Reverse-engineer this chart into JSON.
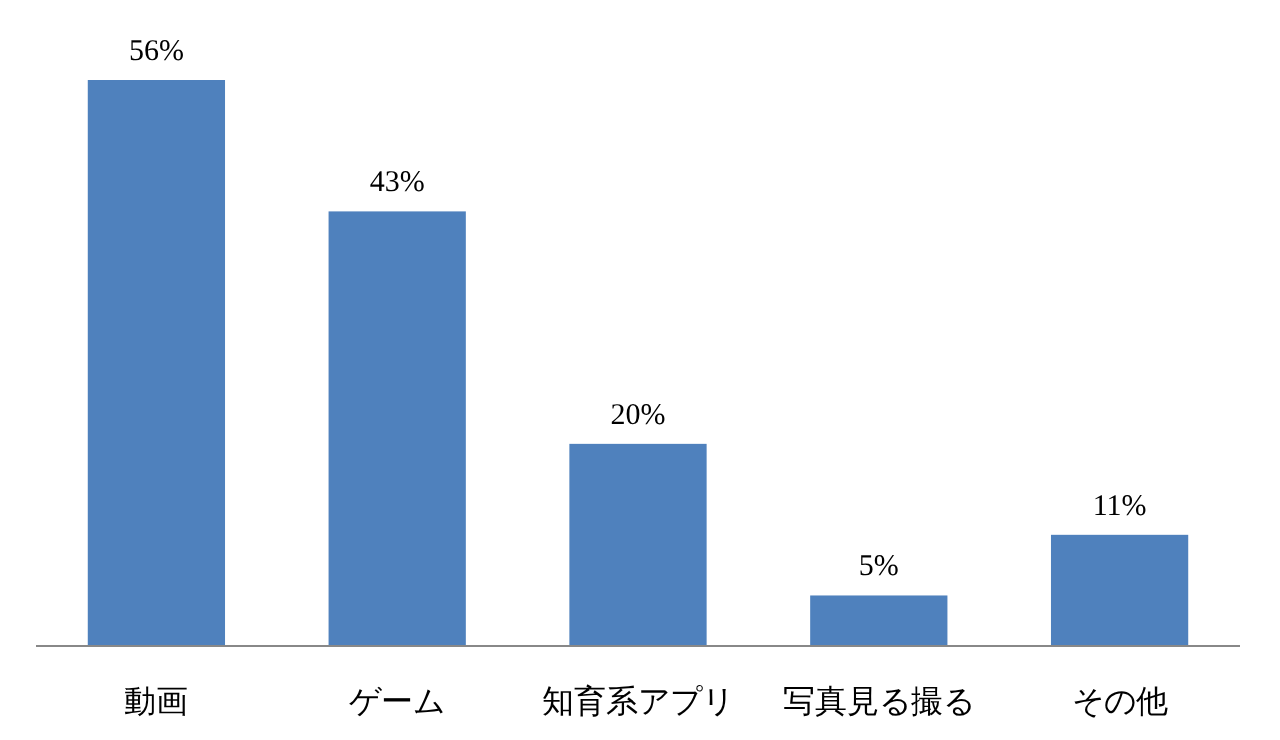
{
  "chart_data": {
    "type": "bar",
    "categories": [
      "動画",
      "ゲーム",
      "知育系アプリ",
      "写真見る撮る",
      "その他"
    ],
    "values": [
      56,
      43,
      20,
      5,
      11
    ],
    "value_labels": [
      "56%",
      "43%",
      "20%",
      "5%",
      "11%"
    ],
    "color": "#4f81bd"
  }
}
